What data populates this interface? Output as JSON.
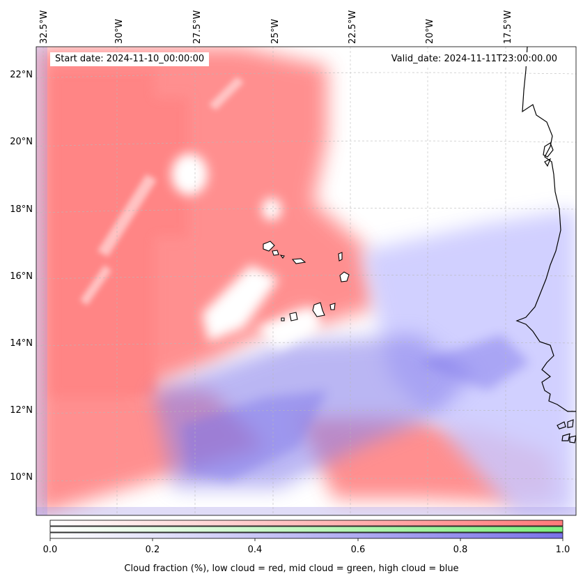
{
  "header": {
    "start_date": "Start date: 2024-11-10_00:00:00",
    "valid_date": "Valid_date: 2024-11-11T23:00:00.00"
  },
  "map": {
    "lon_labels": [
      "32.5°W",
      "30°W",
      "27.5°W",
      "25°W",
      "22.5°W",
      "20°W",
      "17.5°W"
    ],
    "lat_labels": [
      "22°N",
      "20°N",
      "18°N",
      "16°N",
      "14°N",
      "12°N",
      "10°N"
    ],
    "lon_range": [
      -32.7,
      -15.5
    ],
    "lat_range": [
      8.9,
      22.8
    ]
  },
  "colorbar": {
    "ticks": [
      "0.0",
      "0.2",
      "0.4",
      "0.6",
      "0.8",
      "1.0"
    ],
    "caption": "Cloud fraction (%), low cloud = red, mid cloud = green, high cloud = blue"
  },
  "colors": {
    "low_cloud": "#ff7a7a",
    "mid_cloud": "#7df07d",
    "high_cloud": "#7a72e8"
  }
}
